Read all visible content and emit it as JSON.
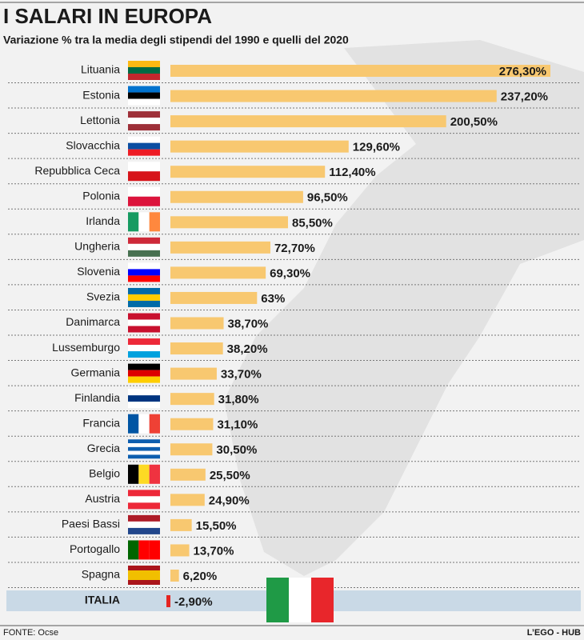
{
  "chart_data": {
    "type": "hbar",
    "title": "I SALARI IN EUROPA",
    "subtitle": "Variazione % tra la media degli stipendi del 1990 e quelli del 2020",
    "categories": [
      "Lituania",
      "Estonia",
      "Lettonia",
      "Slovacchia",
      "Repubblica Ceca",
      "Polonia",
      "Irlanda",
      "Ungheria",
      "Slovenia",
      "Svezia",
      "Danimarca",
      "Lussemburgo",
      "Germania",
      "Finlandia",
      "Francia",
      "Grecia",
      "Belgio",
      "Austria",
      "Paesi Bassi",
      "Portogallo",
      "Spagna",
      "ITALIA"
    ],
    "values": [
      276.3,
      237.2,
      200.5,
      129.6,
      112.4,
      96.5,
      85.5,
      72.7,
      69.3,
      63,
      38.7,
      38.2,
      33.7,
      31.8,
      31.1,
      30.5,
      25.5,
      24.9,
      15.5,
      13.7,
      6.2,
      -2.9
    ],
    "value_labels": [
      "276,30%",
      "237,20%",
      "200,50%",
      "129,60%",
      "112,40%",
      "96,50%",
      "85,50%",
      "72,70%",
      "69,30%",
      "63%",
      "38,70%",
      "38,20%",
      "33,70%",
      "31,80%",
      "31,10%",
      "30,50%",
      "25,50%",
      "24,90%",
      "15,50%",
      "13,70%",
      "6,20%",
      "-2,90%"
    ],
    "color": "#f8c870",
    "negative_color": "#e52521",
    "highlight_index": 21,
    "source": "FONTE: Ocse",
    "credit": "L’EGO - HUB"
  }
}
